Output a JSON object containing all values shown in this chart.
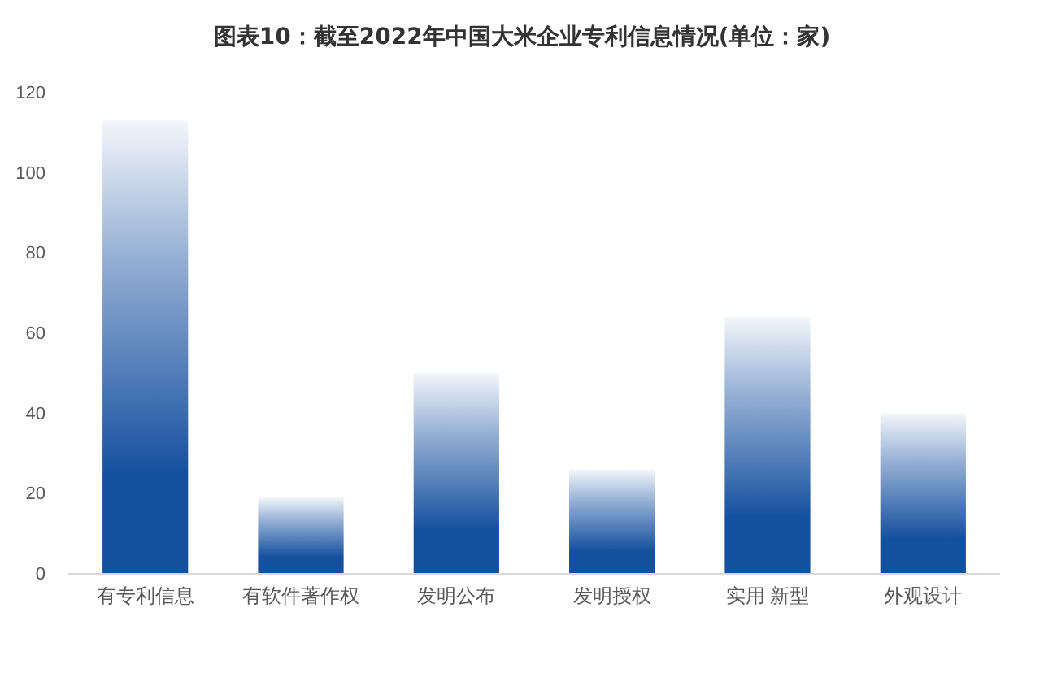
{
  "chart_data": {
    "type": "bar",
    "title": "图表10：截至2022年中国大米企业专利信息情况(单位：家)",
    "categories": [
      "有专利信息",
      "有软件著作权",
      "发明公布",
      "发明授权",
      "实用 新型",
      "外观设计"
    ],
    "values": [
      113,
      19,
      50,
      26,
      64,
      40
    ],
    "color": "#15509f",
    "ylim": [
      0,
      120
    ],
    "yticks": [
      0,
      20,
      40,
      60,
      80,
      100,
      120
    ],
    "grid": false
  }
}
